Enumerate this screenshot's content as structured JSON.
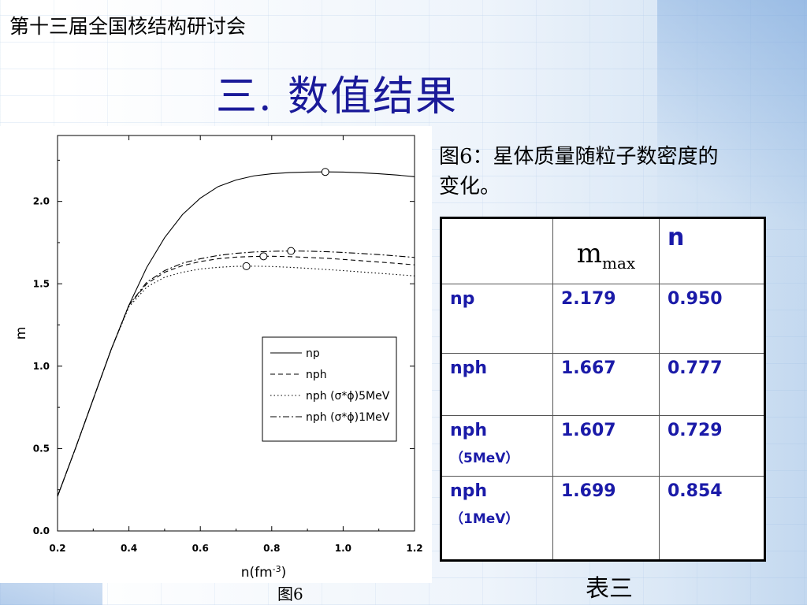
{
  "header": {
    "conference": "第十三届全国核结构研讨会",
    "title": "三. 数值结果"
  },
  "figure": {
    "caption": "图6：星体质量随粒子数密度的变化。",
    "label": "图6"
  },
  "chart_data": {
    "type": "line",
    "xlabel": "n(fm-3)",
    "ylabel": "m",
    "xlim": [
      0.2,
      1.2
    ],
    "ylim": [
      0.0,
      2.4
    ],
    "xticks": [
      "0.2",
      "0.4",
      "0.6",
      "0.8",
      "1.0",
      "1.2"
    ],
    "yticks": [
      "0.0",
      "0.5",
      "1.0",
      "1.5",
      "2.0"
    ],
    "legend_position": "bottom-right",
    "series": [
      {
        "name": "np",
        "style": "solid",
        "x": [
          0.2,
          0.25,
          0.3,
          0.35,
          0.4,
          0.45,
          0.5,
          0.55,
          0.6,
          0.65,
          0.7,
          0.75,
          0.8,
          0.85,
          0.9,
          0.95,
          1.0,
          1.05,
          1.1,
          1.15,
          1.2
        ],
        "y": [
          0.21,
          0.5,
          0.8,
          1.1,
          1.37,
          1.6,
          1.78,
          1.92,
          2.02,
          2.09,
          2.13,
          2.155,
          2.168,
          2.175,
          2.178,
          2.179,
          2.178,
          2.174,
          2.168,
          2.16,
          2.15
        ],
        "max": {
          "x": 0.95,
          "y": 2.179
        }
      },
      {
        "name": "nph",
        "style": "dashed",
        "x": [
          0.2,
          0.25,
          0.3,
          0.35,
          0.4,
          0.45,
          0.5,
          0.55,
          0.6,
          0.65,
          0.7,
          0.75,
          0.8,
          0.85,
          0.9,
          0.95,
          1.0,
          1.05,
          1.1,
          1.15,
          1.2
        ],
        "y": [
          0.21,
          0.5,
          0.8,
          1.1,
          1.37,
          1.5,
          1.57,
          1.61,
          1.635,
          1.652,
          1.662,
          1.666,
          1.667,
          1.665,
          1.66,
          1.655,
          1.648,
          1.64,
          1.632,
          1.624,
          1.615
        ],
        "max": {
          "x": 0.777,
          "y": 1.667
        }
      },
      {
        "name": "nph (σ*ϕ)5MeV",
        "style": "dotted",
        "x": [
          0.2,
          0.25,
          0.3,
          0.35,
          0.4,
          0.45,
          0.5,
          0.55,
          0.6,
          0.65,
          0.7,
          0.75,
          0.8,
          0.85,
          0.9,
          0.95,
          1.0,
          1.05,
          1.1,
          1.15,
          1.2
        ],
        "y": [
          0.21,
          0.5,
          0.8,
          1.1,
          1.36,
          1.48,
          1.54,
          1.57,
          1.59,
          1.6,
          1.606,
          1.607,
          1.605,
          1.6,
          1.594,
          1.587,
          1.58,
          1.572,
          1.564,
          1.556,
          1.548
        ],
        "max": {
          "x": 0.729,
          "y": 1.607
        }
      },
      {
        "name": "nph (σ*ϕ)1MeV",
        "style": "dashdot",
        "x": [
          0.2,
          0.25,
          0.3,
          0.35,
          0.4,
          0.45,
          0.5,
          0.55,
          0.6,
          0.65,
          0.7,
          0.75,
          0.8,
          0.85,
          0.9,
          0.95,
          1.0,
          1.05,
          1.1,
          1.15,
          1.2
        ],
        "y": [
          0.21,
          0.5,
          0.8,
          1.1,
          1.37,
          1.51,
          1.58,
          1.625,
          1.652,
          1.672,
          1.685,
          1.693,
          1.697,
          1.699,
          1.698,
          1.695,
          1.69,
          1.684,
          1.677,
          1.669,
          1.66
        ],
        "max": {
          "x": 0.854,
          "y": 1.699
        }
      }
    ]
  },
  "table": {
    "header": {
      "col0": "",
      "col1_main": "m",
      "col1_sub": "max",
      "col2": "n"
    },
    "rows": [
      {
        "name": "np",
        "sub": "",
        "mmax": "2.179",
        "n": "0.950"
      },
      {
        "name": "nph",
        "sub": "",
        "mmax": "1.667",
        "n": "0.777"
      },
      {
        "name": "nph",
        "sub": "（5MeV）",
        "mmax": "1.607",
        "n": "0.729"
      },
      {
        "name": "nph",
        "sub": "（1MeV）",
        "mmax": "1.699",
        "n": "0.854"
      }
    ],
    "label": "表三"
  }
}
